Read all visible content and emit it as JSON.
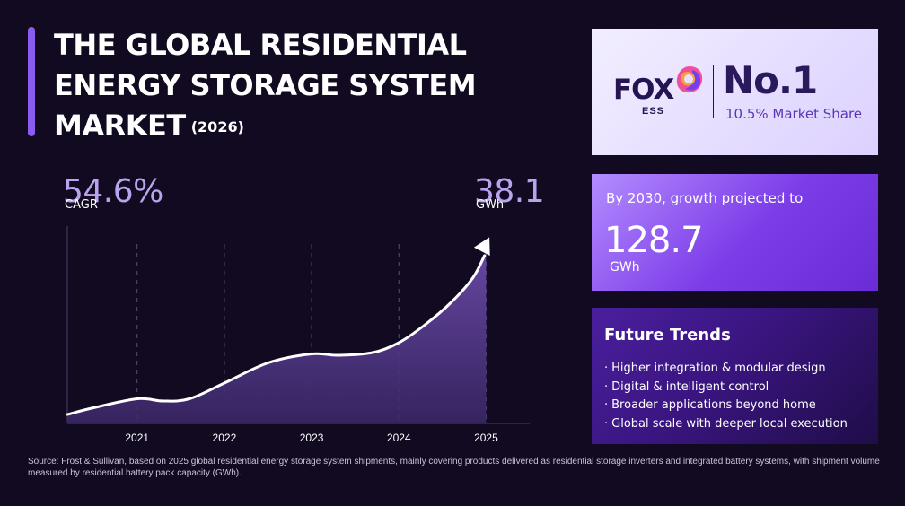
{
  "header": {
    "title": "THE GLOBAL RESIDENTIAL ENERGY STORAGE SYSTEM MARKET",
    "year": "(2026)"
  },
  "stats": {
    "cagr_value": "54.6%",
    "cagr_label": "CAGR",
    "end_value": "38.1",
    "end_unit": "GWh"
  },
  "brand_card": {
    "brand_name": "FOX",
    "brand_sub": "ESS",
    "rank": "No.1",
    "share": "10.5% Market Share",
    "logo_icon": "fox-ess-logo-icon"
  },
  "growth_card": {
    "lead": "By 2030, growth projected to",
    "value": "128.7",
    "unit": "GWh"
  },
  "trends_card": {
    "title": "Future Trends",
    "bullet": "·",
    "items": [
      "Higher integration & modular design",
      "Digital & intelligent control",
      "Broader applications beyond home",
      "Global scale with deeper local execution"
    ]
  },
  "source": "Source: Frost & Sullivan, based on 2025 global residential energy storage system shipments, mainly covering products delivered as residential storage inverters and integrated battery systems, with shipment volume measured by residential battery pack capacity (GWh).",
  "colors": {
    "background": "#110a20",
    "accent": "#8a5cf0",
    "area_top": "#6a4aa8",
    "area_bottom": "#3a2766",
    "stat_text": "#b9a3ee"
  },
  "chart_data": {
    "type": "area",
    "categories": [
      "2021",
      "2022",
      "2023",
      "2024",
      "2025"
    ],
    "x": [
      2020.2,
      2020.5,
      2021,
      2021.3,
      2021.6,
      2022,
      2022.5,
      2023,
      2023.3,
      2023.7,
      2024,
      2024.3,
      2024.6,
      2024.85,
      2025
    ],
    "values": [
      2.0,
      3.5,
      5.5,
      5.0,
      5.5,
      9.0,
      13.5,
      15.5,
      15.2,
      15.8,
      18.0,
      22.0,
      27.0,
      32.5,
      38.1
    ],
    "title": "",
    "xlabel": "",
    "ylabel": "",
    "xlim": [
      2020.2,
      2025.5
    ],
    "ylim": [
      0,
      44
    ],
    "grid": "vertical-dashed",
    "legend": "none",
    "annotations": [
      "54.6%",
      "CAGR",
      "38.1",
      "GWh"
    ]
  }
}
